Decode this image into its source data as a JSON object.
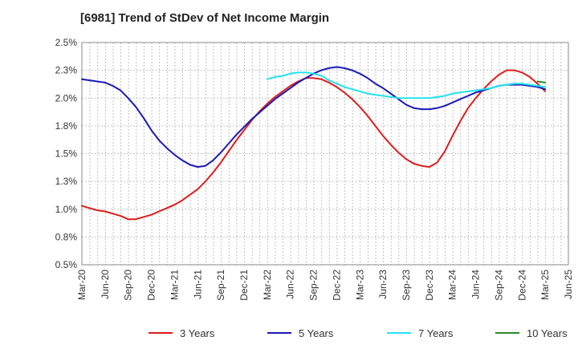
{
  "chart_data": {
    "type": "line",
    "title": "[6981]  Trend of StDev of Net Income Margin",
    "xlabel": "",
    "ylabel": "",
    "grid": "dashed",
    "legend_position": "bottom",
    "y_tick_labels": [
      "0.5%",
      "0.8%",
      "1.0%",
      "1.3%",
      "1.5%",
      "1.8%",
      "2.0%",
      "2.3%",
      "2.5%"
    ],
    "x_tick_labels": [
      "Mar-20",
      "Jun-20",
      "Sep-20",
      "Dec-20",
      "Mar-21",
      "Jun-21",
      "Sep-21",
      "Dec-21",
      "Mar-22",
      "Jun-22",
      "Sep-22",
      "Dec-22",
      "Mar-23",
      "Jun-23",
      "Sep-23",
      "Dec-23",
      "Mar-24",
      "Jun-24",
      "Sep-24",
      "Dec-24",
      "Mar-25",
      "Jun-25"
    ],
    "ylim": [
      0.5,
      2.5
    ],
    "x_index_range": [
      0,
      63
    ],
    "series": [
      {
        "name": "3 Years",
        "color": "#dd1c1c",
        "points": [
          [
            0,
            1.03
          ],
          [
            1,
            1.01
          ],
          [
            2,
            0.99
          ],
          [
            3,
            0.98
          ],
          [
            4,
            0.96
          ],
          [
            5,
            0.94
          ],
          [
            6,
            0.91
          ],
          [
            7,
            0.91
          ],
          [
            8,
            0.93
          ],
          [
            9,
            0.95
          ],
          [
            10,
            0.98
          ],
          [
            11,
            1.01
          ],
          [
            12,
            1.04
          ],
          [
            13,
            1.08
          ],
          [
            14,
            1.13
          ],
          [
            15,
            1.18
          ],
          [
            16,
            1.25
          ],
          [
            17,
            1.33
          ],
          [
            18,
            1.42
          ],
          [
            19,
            1.52
          ],
          [
            20,
            1.62
          ],
          [
            21,
            1.71
          ],
          [
            22,
            1.8
          ],
          [
            23,
            1.88
          ],
          [
            24,
            1.95
          ],
          [
            25,
            2.01
          ],
          [
            26,
            2.06
          ],
          [
            27,
            2.11
          ],
          [
            28,
            2.15
          ],
          [
            29,
            2.18
          ],
          [
            30,
            2.18
          ],
          [
            31,
            2.17
          ],
          [
            32,
            2.14
          ],
          [
            33,
            2.1
          ],
          [
            34,
            2.05
          ],
          [
            35,
            1.99
          ],
          [
            36,
            1.92
          ],
          [
            37,
            1.84
          ],
          [
            38,
            1.75
          ],
          [
            39,
            1.66
          ],
          [
            40,
            1.58
          ],
          [
            41,
            1.51
          ],
          [
            42,
            1.45
          ],
          [
            43,
            1.41
          ],
          [
            44,
            1.39
          ],
          [
            45,
            1.38
          ],
          [
            46,
            1.42
          ],
          [
            47,
            1.52
          ],
          [
            48,
            1.66
          ],
          [
            49,
            1.79
          ],
          [
            50,
            1.91
          ],
          [
            51,
            2.0
          ],
          [
            52,
            2.08
          ],
          [
            53,
            2.15
          ],
          [
            54,
            2.21
          ],
          [
            55,
            2.25
          ],
          [
            56,
            2.25
          ],
          [
            57,
            2.23
          ],
          [
            58,
            2.19
          ],
          [
            59,
            2.13
          ],
          [
            60,
            2.06
          ]
        ]
      },
      {
        "name": "5 Years",
        "color": "#1a1ab8",
        "points": [
          [
            0,
            2.17
          ],
          [
            1,
            2.16
          ],
          [
            2,
            2.15
          ],
          [
            3,
            2.14
          ],
          [
            4,
            2.11
          ],
          [
            5,
            2.07
          ],
          [
            6,
            2.0
          ],
          [
            7,
            1.92
          ],
          [
            8,
            1.82
          ],
          [
            9,
            1.71
          ],
          [
            10,
            1.62
          ],
          [
            11,
            1.55
          ],
          [
            12,
            1.49
          ],
          [
            13,
            1.44
          ],
          [
            14,
            1.4
          ],
          [
            15,
            1.38
          ],
          [
            16,
            1.39
          ],
          [
            17,
            1.44
          ],
          [
            18,
            1.51
          ],
          [
            19,
            1.59
          ],
          [
            20,
            1.67
          ],
          [
            21,
            1.74
          ],
          [
            22,
            1.81
          ],
          [
            23,
            1.87
          ],
          [
            24,
            1.93
          ],
          [
            25,
            1.99
          ],
          [
            26,
            2.04
          ],
          [
            27,
            2.09
          ],
          [
            28,
            2.14
          ],
          [
            29,
            2.18
          ],
          [
            30,
            2.22
          ],
          [
            31,
            2.25
          ],
          [
            32,
            2.27
          ],
          [
            33,
            2.28
          ],
          [
            34,
            2.27
          ],
          [
            35,
            2.25
          ],
          [
            36,
            2.22
          ],
          [
            37,
            2.18
          ],
          [
            38,
            2.13
          ],
          [
            39,
            2.09
          ],
          [
            40,
            2.04
          ],
          [
            41,
            1.99
          ],
          [
            42,
            1.94
          ],
          [
            43,
            1.91
          ],
          [
            44,
            1.9
          ],
          [
            45,
            1.9
          ],
          [
            46,
            1.91
          ],
          [
            47,
            1.93
          ],
          [
            48,
            1.96
          ],
          [
            49,
            1.99
          ],
          [
            50,
            2.02
          ],
          [
            51,
            2.05
          ],
          [
            52,
            2.07
          ],
          [
            53,
            2.09
          ],
          [
            54,
            2.11
          ],
          [
            55,
            2.12
          ],
          [
            56,
            2.12
          ],
          [
            57,
            2.12
          ],
          [
            58,
            2.11
          ],
          [
            59,
            2.1
          ],
          [
            60,
            2.08
          ]
        ]
      },
      {
        "name": "7 Years",
        "color": "#22e3ec",
        "points": [
          [
            24,
            2.17
          ],
          [
            25,
            2.19
          ],
          [
            26,
            2.2
          ],
          [
            27,
            2.22
          ],
          [
            28,
            2.23
          ],
          [
            29,
            2.23
          ],
          [
            30,
            2.22
          ],
          [
            31,
            2.2
          ],
          [
            32,
            2.16
          ],
          [
            33,
            2.13
          ],
          [
            34,
            2.1
          ],
          [
            35,
            2.08
          ],
          [
            36,
            2.06
          ],
          [
            37,
            2.04
          ],
          [
            38,
            2.03
          ],
          [
            39,
            2.02
          ],
          [
            40,
            2.01
          ],
          [
            41,
            2.0
          ],
          [
            42,
            2.0
          ],
          [
            43,
            2.0
          ],
          [
            44,
            2.0
          ],
          [
            45,
            2.0
          ],
          [
            46,
            2.01
          ],
          [
            47,
            2.02
          ],
          [
            48,
            2.04
          ],
          [
            49,
            2.05
          ],
          [
            50,
            2.06
          ],
          [
            51,
            2.07
          ],
          [
            52,
            2.08
          ],
          [
            53,
            2.09
          ],
          [
            54,
            2.11
          ],
          [
            55,
            2.12
          ],
          [
            56,
            2.13
          ],
          [
            57,
            2.13
          ],
          [
            58,
            2.12
          ],
          [
            59,
            2.11
          ],
          [
            60,
            2.1
          ]
        ]
      },
      {
        "name": "10 Years",
        "color": "#2a8a2a",
        "points": [
          [
            59,
            2.15
          ],
          [
            60,
            2.14
          ]
        ]
      }
    ]
  }
}
